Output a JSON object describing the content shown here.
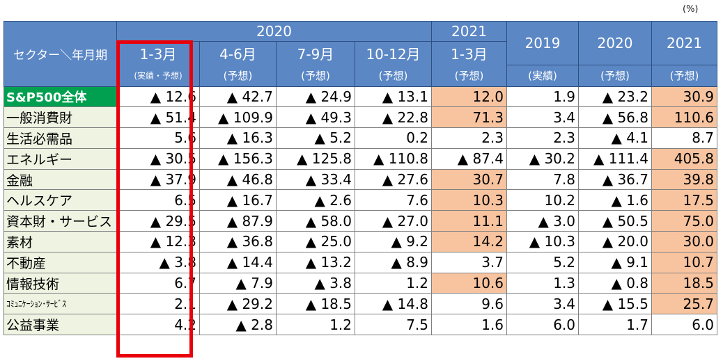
{
  "unit": "(%)",
  "header": {
    "corner": "セクター＼年月期",
    "group_2020": "2020",
    "group_2021": "2021",
    "annual": [
      {
        "year": "2019",
        "sub": "(実績)"
      },
      {
        "year": "2020",
        "sub": "(予想)"
      },
      {
        "year": "2021",
        "sub": "(予想)"
      }
    ],
    "quarters": [
      {
        "label": "1-3月",
        "sub": "(実績・予想)"
      },
      {
        "label": "4-6月",
        "sub": "(予想)"
      },
      {
        "label": "7-9月",
        "sub": "(予想)"
      },
      {
        "label": "10-12月",
        "sub": "(予想)"
      },
      {
        "label": "1-3月",
        "sub": "(予想)"
      }
    ]
  },
  "rows": [
    {
      "sector": "S&P500全体",
      "values": [
        "▲ 12.6",
        "▲ 42.7",
        "▲ 24.9",
        "▲ 13.1",
        "12.0",
        "1.9",
        "▲ 23.2",
        "30.9"
      ]
    },
    {
      "sector": "一般消費財",
      "values": [
        "▲ 51.4",
        "▲ 109.9",
        "▲ 49.3",
        "▲ 22.8",
        "71.3",
        "3.4",
        "▲ 56.8",
        "110.6"
      ]
    },
    {
      "sector": "生活必需品",
      "values": [
        "5.6",
        "▲ 16.3",
        "▲ 5.2",
        "0.2",
        "2.3",
        "2.3",
        "▲ 4.1",
        "8.7"
      ]
    },
    {
      "sector": "エネルギー",
      "values": [
        "▲ 30.5",
        "▲ 156.3",
        "▲ 125.8",
        "▲ 110.8",
        "▲ 87.4",
        "▲ 30.2",
        "▲ 111.4",
        "405.8"
      ]
    },
    {
      "sector": "金融",
      "values": [
        "▲ 37.9",
        "▲ 46.8",
        "▲ 33.4",
        "▲ 27.6",
        "30.7",
        "7.8",
        "▲ 36.7",
        "39.8"
      ]
    },
    {
      "sector": "ヘルスケア",
      "values": [
        "6.5",
        "▲ 16.7",
        "▲ 2.6",
        "7.6",
        "10.3",
        "10.2",
        "▲ 1.6",
        "17.5"
      ]
    },
    {
      "sector": "資本財・サービス",
      "values": [
        "▲ 29.5",
        "▲ 87.9",
        "▲ 58.0",
        "▲ 27.0",
        "11.1",
        "▲ 3.0",
        "▲ 50.5",
        "75.0"
      ]
    },
    {
      "sector": "素材",
      "values": [
        "▲ 12.3",
        "▲ 36.8",
        "▲ 25.0",
        "▲ 9.2",
        "14.2",
        "▲ 10.3",
        "▲ 20.0",
        "30.0"
      ]
    },
    {
      "sector": "不動産",
      "values": [
        "▲ 3.8",
        "▲ 14.4",
        "▲ 13.2",
        "▲ 8.9",
        "3.7",
        "5.2",
        "▲ 9.1",
        "10.7"
      ]
    },
    {
      "sector": "情報技術",
      "values": [
        "6.7",
        "▲ 7.9",
        "▲ 3.8",
        "1.2",
        "10.6",
        "1.3",
        "▲ 0.8",
        "18.5"
      ]
    },
    {
      "sector": "ｺﾐｭﾆｹｰｼｮﾝ･ｻｰﾋﾞｽ",
      "values": [
        "2.1",
        "▲ 29.2",
        "▲ 18.5",
        "▲ 14.8",
        "9.6",
        "3.4",
        "▲ 15.5",
        "25.7"
      ]
    },
    {
      "sector": "公益事業",
      "values": [
        "4.2",
        "▲ 2.8",
        "1.2",
        "7.5",
        "1.6",
        "6.0",
        "1.7",
        "6.0"
      ]
    }
  ],
  "highlights": [
    [
      4,
      7
    ],
    [
      4,
      7
    ],
    [],
    [
      7
    ],
    [
      4,
      7
    ],
    [
      4,
      7
    ],
    [
      4,
      7
    ],
    [
      4,
      7
    ],
    [
      7
    ],
    [
      4,
      7
    ],
    [
      7
    ],
    []
  ],
  "colors": {
    "header_bg": "#5b87c5",
    "sector_bg": "#eef3e2",
    "total_bg": "#00a050",
    "highlight_bg": "#f8c4a0",
    "frame_red": "#e8000b"
  }
}
